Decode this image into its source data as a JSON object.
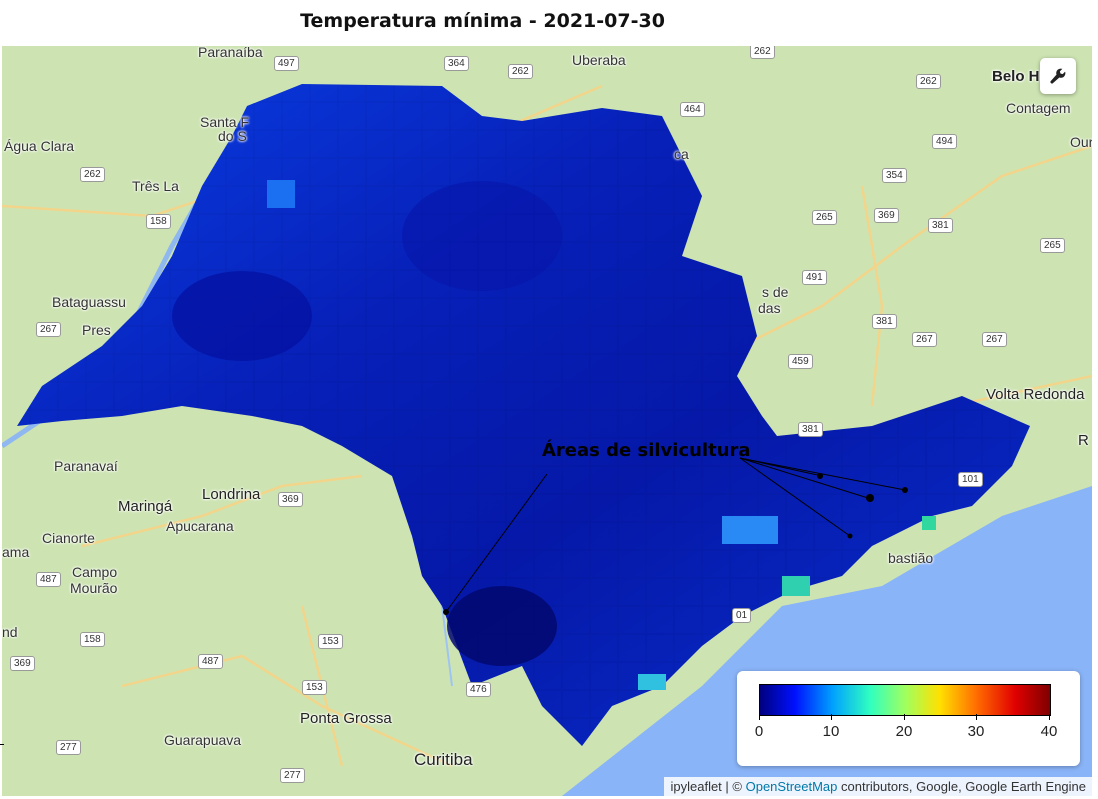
{
  "title": "Temperatura mínima - 2021-07-30",
  "annotation": "Áreas de silvicultura",
  "places": {
    "belo_horizonte": "Belo H",
    "contagem": "Contagem",
    "ouro": "Our",
    "paranaiba": "Paranaíba",
    "uberaba": "Uberaba",
    "agua_clara": "Água Clara",
    "santa_fe": "Santa F",
    "do_sul": "do S",
    "tres_lagoas": "Três La",
    "bataguassu": "Bataguassu",
    "pres": "Pres",
    "paranavai": "Paranavaí",
    "maringa": "Maringá",
    "londrina": "Londrina",
    "apucarana": "Apucarana",
    "cianorte": "Cianorte",
    "campo": "Campo",
    "mourao": "Mourão",
    "ama": "ama",
    "nd": "nd",
    "ponta_grossa": "Ponta Grossa",
    "guarapuava": "Guarapuava",
    "curitiba": "Curitiba",
    "volta_redonda": "Volta Redonda",
    "r": "R",
    "sebastiao": "bastião",
    "campinas_a": "s de",
    "campinas_b": "das",
    "ca": "ca"
  },
  "shields": {
    "s497": "497",
    "s364": "364",
    "s262a": "262",
    "s262b": "262",
    "s262c": "262",
    "s262d": "262",
    "s464": "464",
    "s494": "494",
    "s354": "354",
    "s158a": "158",
    "s265a": "265",
    "s369a": "369",
    "s381a": "381",
    "s265b": "265",
    "s491": "491",
    "s267a": "267",
    "s381b": "381",
    "s267b": "267",
    "s267c": "267",
    "s459": "459",
    "s381c": "381",
    "s101": "101",
    "s369b": "369",
    "s487a": "487",
    "s158b": "158",
    "s153a": "153",
    "s487b": "487",
    "s369c": "369",
    "s153b": "153",
    "s476": "476",
    "s277a": "277",
    "s277b": "277",
    "s001": "01"
  },
  "legend": {
    "ticks": [
      "0",
      "10",
      "20",
      "30",
      "40"
    ],
    "range": [
      0,
      40
    ],
    "colormap": [
      "#00007f",
      "#0010ff",
      "#00a0ff",
      "#30ffc0",
      "#a0ff60",
      "#ffe000",
      "#ff6a00",
      "#e00000",
      "#7f0000"
    ]
  },
  "attribution": {
    "prefix": "ipyleaflet | ©",
    "osm": "OpenStreetMap",
    "suffix": "contributors, Google, Google Earth Engine"
  },
  "toolbar": {
    "icon": "wrench-icon"
  },
  "colors": {
    "land": "#c9e0ad",
    "ocean": "#8ab4f8",
    "raster_dark": "#0a1fb0"
  }
}
